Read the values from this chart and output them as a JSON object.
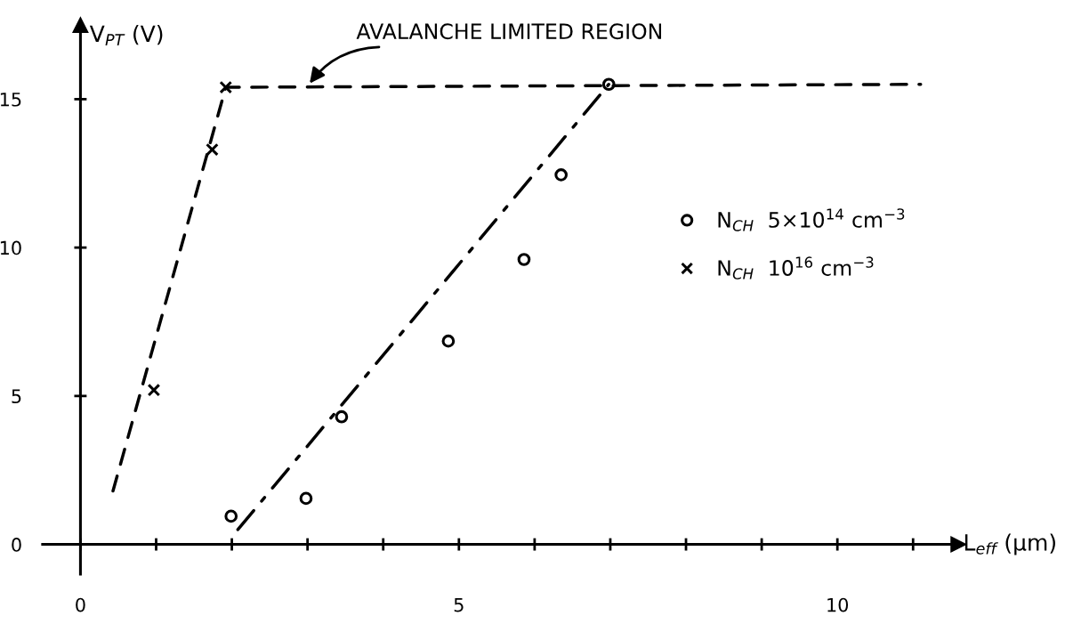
{
  "chart_data": {
    "type": "scatter",
    "xlabel": "L$_{eff}$ (μm)",
    "ylabel": "V$_{PT}$ (V)",
    "xlim": [
      -0.5,
      11.6
    ],
    "ylim": [
      -1,
      17.5
    ],
    "xticks": [
      0,
      {
        "value": 1,
        "label": null
      },
      {
        "value": 2,
        "label": null
      },
      {
        "value": 3,
        "label": null
      },
      {
        "value": 4,
        "label": null
      },
      5,
      {
        "value": 6,
        "label": null
      },
      {
        "value": 7,
        "label": null
      },
      {
        "value": 8,
        "label": null
      },
      {
        "value": 9,
        "label": null
      },
      10,
      {
        "value": 11,
        "label": null
      }
    ],
    "yticks": [
      0,
      5,
      10,
      15
    ],
    "legend": "right",
    "series": [
      {
        "name": "N$_{CH}$  5×10$^{14}$ cm$^{−3}$",
        "marker": "circle",
        "color": "#000000",
        "x": [
          1.99,
          2.98,
          3.45,
          4.86,
          5.86,
          6.35,
          6.98
        ],
        "values": [
          0.95,
          1.55,
          4.3,
          6.85,
          9.6,
          12.45,
          15.5
        ]
      },
      {
        "name": "N$_{CH}$  10$^{16}$ cm$^{−3}$",
        "marker": "cross",
        "color": "#000000",
        "x": [
          0.97,
          1.74,
          1.92
        ],
        "values": [
          5.2,
          13.3,
          15.4
        ]
      },
      {
        "type": "line",
        "line_style": "dashed",
        "color": "#000000",
        "x": [
          0.43,
          1.92,
          11.1
        ],
        "values": [
          1.8,
          15.4,
          15.5
        ]
      },
      {
        "type": "line",
        "line_style": "dashdot",
        "color": "#000000",
        "x": [
          2.08,
          6.98
        ],
        "values": [
          0.5,
          15.5
        ]
      }
    ],
    "annotations": [
      "AVALANCHE LIMITED REGION"
    ]
  }
}
